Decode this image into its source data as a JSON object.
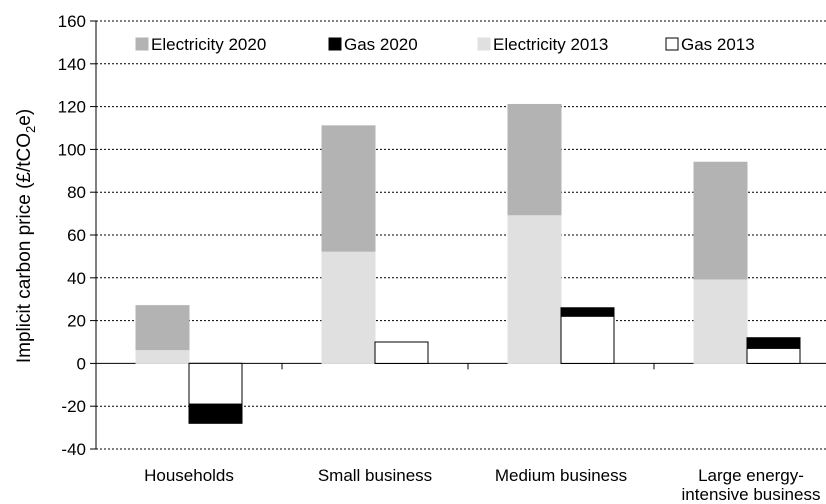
{
  "chart_data": {
    "type": "bar",
    "ylabel_main": "Implicit carbon price (£/tCO",
    "ylabel_sub": "2",
    "ylabel_end": "e)",
    "ylim": [
      -40,
      160
    ],
    "yticks": [
      -40,
      -20,
      0,
      20,
      40,
      60,
      80,
      100,
      120,
      140,
      160
    ],
    "grid": true,
    "legend_position": "top",
    "categories": [
      [
        "Households"
      ],
      [
        "Small business"
      ],
      [
        "Medium business"
      ],
      [
        "Large energy-",
        "intensive business"
      ]
    ],
    "series": [
      {
        "name": "Electricity 2020",
        "color": "#b3b3b3"
      },
      {
        "name": "Gas 2020",
        "color": "#000000"
      },
      {
        "name": "Electricity 2013",
        "color": "#e0e0e0"
      },
      {
        "name": "Gas 2013",
        "color": "#ffffff"
      }
    ],
    "electricity": {
      "electricity_2013": [
        6,
        52,
        69,
        39
      ],
      "electricity_2020": [
        27,
        111,
        121,
        94
      ]
    },
    "gas": {
      "gas_2013": [
        -19,
        10,
        22,
        7
      ],
      "gas_2020": [
        -28,
        10,
        26,
        12
      ]
    }
  }
}
